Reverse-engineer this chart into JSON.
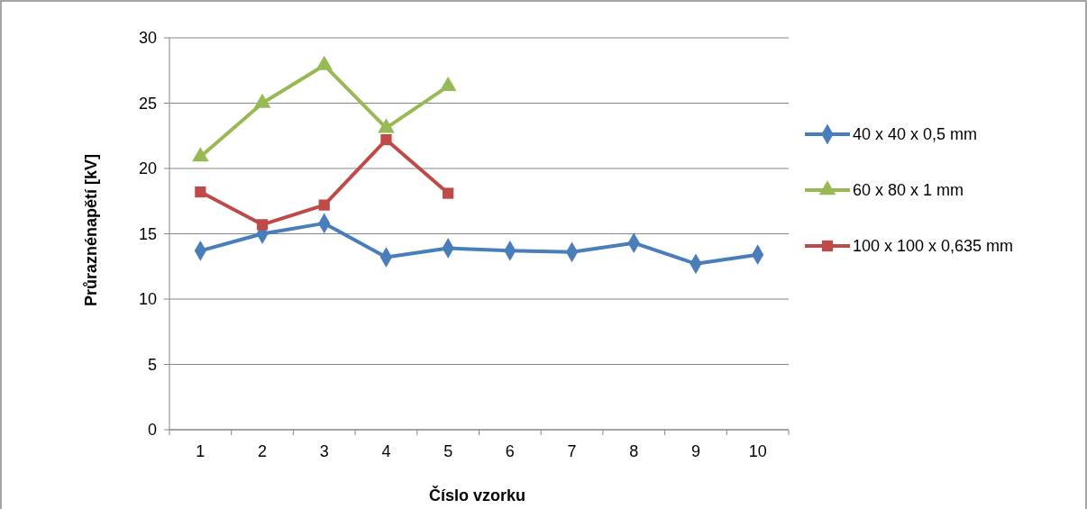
{
  "chart_data": {
    "type": "line",
    "xlabel": "Číslo vzorku",
    "ylabel": "Průraznénapětí  [kV]",
    "categories": [
      "1",
      "2",
      "3",
      "4",
      "5",
      "6",
      "7",
      "8",
      "9",
      "10"
    ],
    "ylim": [
      0,
      30
    ],
    "yticks": [
      0,
      5,
      10,
      15,
      20,
      25,
      30
    ],
    "grid": "y",
    "legend": "right",
    "series": [
      {
        "name": "40 x 40 x 0,5 mm",
        "color": "#4a7ebb",
        "marker": "diamond",
        "values": [
          13.7,
          15.0,
          15.8,
          13.2,
          13.9,
          13.7,
          13.6,
          14.3,
          12.7,
          13.4
        ]
      },
      {
        "name": "60 x 80 x 1 mm",
        "color": "#98b954",
        "marker": "triangle",
        "values": [
          20.9,
          25.0,
          27.9,
          23.1,
          26.3,
          null,
          null,
          null,
          null,
          null
        ]
      },
      {
        "name": "100 x 100 x 0,635 mm",
        "color": "#be4b48",
        "marker": "square",
        "values": [
          18.2,
          15.7,
          17.2,
          22.2,
          18.1,
          null,
          null,
          null,
          null,
          null
        ]
      }
    ]
  }
}
